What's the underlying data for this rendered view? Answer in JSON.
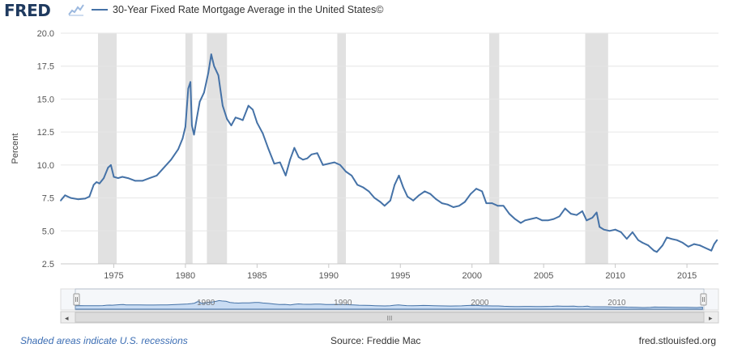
{
  "header": {
    "logo_text": "FRED",
    "legend_label": "30-Year Fixed Rate Mortgage Average in the United States©"
  },
  "footer": {
    "recession_note": "Shaded areas indicate U.S. recessions",
    "source": "Source: Freddie Mac",
    "site": "fred.stlouisfed.org"
  },
  "colors": {
    "series": "#4572a7",
    "recession": "#e1e1e1",
    "navigator_fill": "#c9dcf3",
    "navigator_line": "#4572a7",
    "gridline": "#e6e6e6"
  },
  "navigator": {
    "tick_labels": [
      "1980",
      "1990",
      "2000",
      "2010"
    ],
    "tick_years": [
      1980,
      1990,
      2000,
      2010
    ],
    "scroll_left_icon": "◂",
    "scroll_right_icon": "▸",
    "scroll_grip": "III"
  },
  "chart_data": {
    "type": "line",
    "title": "30-Year Fixed Rate Mortgage Average in the United States©",
    "xlabel": "",
    "ylabel": "Percent",
    "xlim": [
      1971.3,
      2017.2
    ],
    "ylim": [
      2.5,
      20.0
    ],
    "yticks": [
      2.5,
      5.0,
      7.5,
      10.0,
      12.5,
      15.0,
      17.5,
      20.0
    ],
    "ytick_labels": [
      "2.5",
      "5.0",
      "7.5",
      "10.0",
      "12.5",
      "15.0",
      "17.5",
      "20.0"
    ],
    "xticks": [
      1975,
      1980,
      1985,
      1990,
      1995,
      2000,
      2005,
      2010,
      2015
    ],
    "xtick_labels": [
      "1975",
      "1980",
      "1985",
      "1990",
      "1995",
      "2000",
      "2005",
      "2010",
      "2015"
    ],
    "recessions": [
      [
        1973.9,
        1975.2
      ],
      [
        1980.0,
        1980.5
      ],
      [
        1981.5,
        1982.9
      ],
      [
        1990.6,
        1991.2
      ],
      [
        2001.2,
        2001.9
      ],
      [
        2007.9,
        2009.5
      ]
    ],
    "series": [
      {
        "name": "30-Year Fixed Rate Mortgage Average in the United States©",
        "x": [
          1971.3,
          1971.6,
          1972.0,
          1972.5,
          1973.0,
          1973.3,
          1973.6,
          1973.8,
          1974.0,
          1974.3,
          1974.6,
          1974.8,
          1975.0,
          1975.3,
          1975.6,
          1976.0,
          1976.5,
          1977.0,
          1977.5,
          1978.0,
          1978.5,
          1979.0,
          1979.5,
          1979.8,
          1980.0,
          1980.2,
          1980.35,
          1980.45,
          1980.6,
          1980.8,
          1981.0,
          1981.3,
          1981.6,
          1981.8,
          1982.0,
          1982.3,
          1982.6,
          1982.9,
          1983.2,
          1983.5,
          1983.8,
          1984.0,
          1984.4,
          1984.7,
          1985.0,
          1985.4,
          1985.8,
          1986.2,
          1986.6,
          1987.0,
          1987.3,
          1987.6,
          1987.9,
          1988.2,
          1988.5,
          1988.8,
          1989.2,
          1989.6,
          1990.0,
          1990.4,
          1990.8,
          1991.2,
          1991.6,
          1992.0,
          1992.4,
          1992.8,
          1993.2,
          1993.6,
          1993.9,
          1994.3,
          1994.6,
          1994.9,
          1995.2,
          1995.5,
          1995.9,
          1996.3,
          1996.7,
          1997.1,
          1997.5,
          1997.9,
          1998.3,
          1998.7,
          1999.1,
          1999.5,
          1999.9,
          2000.3,
          2000.7,
          2001.0,
          2001.4,
          2001.8,
          2002.2,
          2002.6,
          2003.0,
          2003.4,
          2003.7,
          2004.1,
          2004.5,
          2004.9,
          2005.3,
          2005.7,
          2006.1,
          2006.5,
          2006.9,
          2007.3,
          2007.7,
          2008.0,
          2008.4,
          2008.7,
          2008.9,
          2009.2,
          2009.6,
          2010.0,
          2010.4,
          2010.8,
          2011.2,
          2011.6,
          2011.9,
          2012.3,
          2012.7,
          2012.9,
          2013.3,
          2013.6,
          2013.9,
          2014.3,
          2014.7,
          2015.1,
          2015.5,
          2015.9,
          2016.3,
          2016.7,
          2016.9,
          2017.1
        ],
        "values": [
          7.3,
          7.7,
          7.5,
          7.4,
          7.45,
          7.6,
          8.5,
          8.7,
          8.6,
          9.0,
          9.8,
          10.0,
          9.1,
          9.0,
          9.1,
          9.0,
          8.8,
          8.8,
          9.0,
          9.2,
          9.8,
          10.4,
          11.2,
          12.0,
          12.9,
          15.8,
          16.3,
          13.0,
          12.3,
          13.6,
          14.8,
          15.5,
          17.0,
          18.4,
          17.5,
          16.8,
          14.5,
          13.5,
          13.0,
          13.6,
          13.5,
          13.4,
          14.5,
          14.2,
          13.2,
          12.4,
          11.2,
          10.1,
          10.2,
          9.2,
          10.4,
          11.3,
          10.6,
          10.4,
          10.5,
          10.8,
          10.9,
          10.0,
          10.1,
          10.2,
          10.0,
          9.5,
          9.2,
          8.5,
          8.3,
          8.0,
          7.5,
          7.2,
          6.9,
          7.3,
          8.5,
          9.2,
          8.3,
          7.6,
          7.3,
          7.7,
          8.0,
          7.8,
          7.4,
          7.1,
          7.0,
          6.8,
          6.9,
          7.2,
          7.8,
          8.2,
          8.0,
          7.1,
          7.1,
          6.9,
          6.9,
          6.3,
          5.9,
          5.6,
          5.8,
          5.9,
          6.0,
          5.8,
          5.8,
          5.9,
          6.1,
          6.7,
          6.3,
          6.2,
          6.5,
          5.8,
          6.0,
          6.4,
          5.3,
          5.1,
          5.0,
          5.1,
          4.9,
          4.4,
          4.9,
          4.3,
          4.1,
          3.9,
          3.5,
          3.4,
          3.9,
          4.5,
          4.4,
          4.3,
          4.1,
          3.8,
          4.0,
          3.9,
          3.7,
          3.5,
          4.0,
          4.3
        ]
      }
    ]
  }
}
